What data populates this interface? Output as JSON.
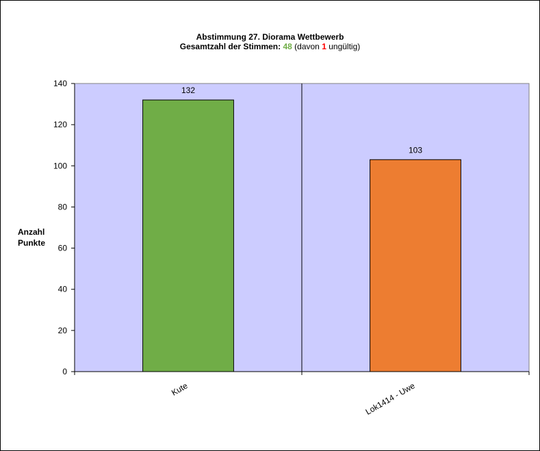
{
  "chart_data": {
    "type": "bar",
    "title_line1": "Abstimmung 27. Diorama Wettbewerb",
    "title_line2": {
      "prefix": "Gesamtzahl der Stimmen:",
      "total": "48",
      "middle": "(davon",
      "invalid": "1",
      "suffix": "ungültig)"
    },
    "ylabel_line1": "Anzahl",
    "ylabel_line2": "Punkte",
    "xlabel": "",
    "categories": [
      "Kute",
      "Lok1414 - Uwe"
    ],
    "values": [
      132,
      103
    ],
    "value_labels": [
      "132",
      "103"
    ],
    "bar_colors": [
      "#70ad47",
      "#ed7d31"
    ],
    "ylim": [
      0,
      140
    ],
    "yticks": [
      0,
      20,
      40,
      60,
      80,
      100,
      120,
      140
    ],
    "grid": false,
    "legend": "none",
    "colors": {
      "plot_background": "#ccccff",
      "total_votes": "#70ad47",
      "invalid_votes": "#ff0000"
    }
  }
}
